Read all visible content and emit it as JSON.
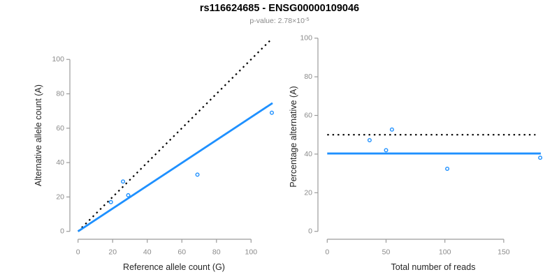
{
  "header": {
    "title": "rs116624685 - ENSG00000109046",
    "subtitle_label": "p-value: ",
    "subtitle_mantissa": "2.78×10",
    "subtitle_exponent": "-5"
  },
  "colors": {
    "accent_blue": "#1E90FF",
    "dashed_black": "#000000",
    "axis_line": "#9b9b9b",
    "tick_label": "#8a8a8a",
    "axis_title": "#262626",
    "point_stroke": "#1E90FF"
  },
  "chart_data": [
    {
      "id": "allele-count-scatter",
      "type": "scatter",
      "xlabel": "Reference allele count (G)",
      "ylabel": "Alternative allele count (A)",
      "xlim": [
        0,
        112
      ],
      "ylim": [
        0,
        112
      ],
      "xticks": [
        0,
        20,
        40,
        60,
        80,
        100
      ],
      "yticks": [
        0,
        20,
        40,
        60,
        80,
        100
      ],
      "grid": false,
      "points": [
        {
          "x": 19,
          "y": 17
        },
        {
          "x": 26,
          "y": 29
        },
        {
          "x": 29,
          "y": 21
        },
        {
          "x": 69,
          "y": 33
        },
        {
          "x": 112,
          "y": 69
        }
      ],
      "lines": [
        {
          "name": "identity-line",
          "style": "dotted",
          "color": "#000000",
          "x1": 0,
          "y1": 0,
          "x2": 111.5,
          "y2": 111.5
        },
        {
          "name": "fitted-line",
          "style": "solid",
          "color": "#1E90FF",
          "x1": 0,
          "y1": 0,
          "x2": 112.4,
          "y2": 74.6
        }
      ]
    },
    {
      "id": "percentage-alternative-scatter",
      "type": "scatter",
      "xlabel": "Total number of reads",
      "ylabel": "Percentage alternative (A)",
      "xlim": [
        0,
        188
      ],
      "ylim": [
        0,
        104
      ],
      "xticks": [
        0,
        50,
        100,
        150
      ],
      "yticks": [
        0,
        20,
        40,
        60,
        80,
        100
      ],
      "grid": false,
      "points": [
        {
          "x": 36,
          "y": 47.2
        },
        {
          "x": 55,
          "y": 52.7
        },
        {
          "x": 50,
          "y": 42
        },
        {
          "x": 102,
          "y": 32.4
        },
        {
          "x": 181,
          "y": 38.1
        }
      ],
      "lines": [
        {
          "name": "expected-50pct-line",
          "style": "dotted",
          "color": "#000000",
          "x1": 0,
          "y1": 50,
          "x2": 177,
          "y2": 50
        },
        {
          "name": "fitted-line",
          "style": "solid",
          "color": "#1E90FF",
          "x1": 0,
          "y1": 40.3,
          "x2": 181.5,
          "y2": 40.3
        }
      ]
    }
  ]
}
